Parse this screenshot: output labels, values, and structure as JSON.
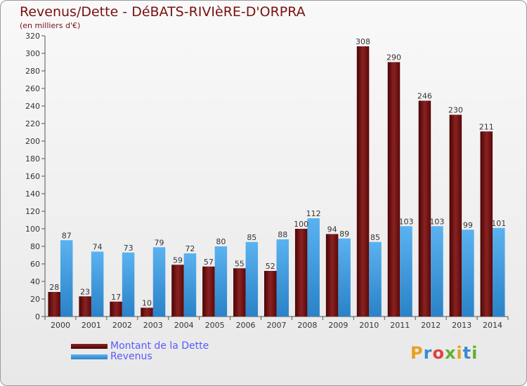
{
  "title": "Revenus/Dette - DéBATS-RIVIèRE-D'ORPRA",
  "subtitle": "(en milliers d'€)",
  "logo_text": "Proxiti",
  "colors": {
    "dette": "#6b0f0f",
    "revenus": "#3b9be0",
    "title": "#7a1010",
    "legend_text": "#5a5aff"
  },
  "chart_data": {
    "type": "bar",
    "title": "Revenus/Dette - DéBATS-RIVIèRE-D'ORPRA",
    "ylabel": "(en milliers d'€)",
    "xlabel": "",
    "ylim": [
      0,
      320
    ],
    "yticks": [
      0,
      20,
      40,
      60,
      80,
      100,
      120,
      140,
      160,
      180,
      200,
      220,
      240,
      260,
      280,
      300,
      320
    ],
    "grid": false,
    "legend_position": "bottom-left",
    "categories": [
      "2000",
      "2001",
      "2002",
      "2003",
      "2004",
      "2005",
      "2006",
      "2007",
      "2008",
      "2009",
      "2010",
      "2011",
      "2012",
      "2013",
      "2014"
    ],
    "series": [
      {
        "name": "Montant de la Dette",
        "values": [
          28,
          23,
          17,
          10,
          59,
          57,
          55,
          52,
          100,
          94,
          308,
          290,
          246,
          230,
          211
        ]
      },
      {
        "name": "Revenus",
        "values": [
          87,
          74,
          73,
          79,
          72,
          80,
          85,
          88,
          112,
          89,
          85,
          103,
          103,
          99,
          101
        ]
      }
    ]
  }
}
